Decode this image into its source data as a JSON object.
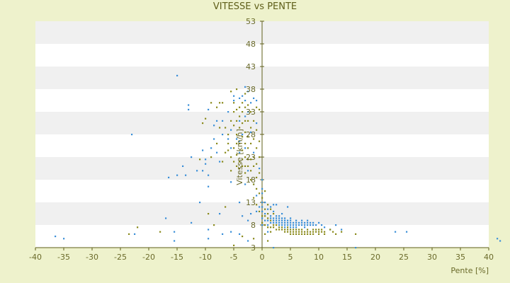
{
  "chart_data": {
    "type": "scatter",
    "title": "VITESSE vs PENTE",
    "xlabel": "Pente [%]",
    "ylabel": "Vitesse [km/h]",
    "xlim": [
      -40,
      40
    ],
    "ylim": [
      3,
      53
    ],
    "x_ticks": [
      -40,
      -35,
      -30,
      -25,
      -20,
      -15,
      -10,
      -5,
      0,
      5,
      10,
      15,
      20,
      25,
      30,
      35,
      40
    ],
    "y_ticks": [
      3,
      8,
      13,
      18,
      23,
      28,
      33,
      38,
      43,
      48,
      53
    ],
    "grid": "horizontal alternating bands",
    "colors": {
      "background": "#eef2cc",
      "plot_band_light": "#ffffff",
      "plot_band_dark": "#f0f0f0",
      "axis": "#5f5f1a",
      "series_a": "#3a8fd8",
      "series_b": "#8a8a1c"
    },
    "series": [
      {
        "color": "#3a8fd8",
        "points": [
          [
            -36.5,
            5.5
          ],
          [
            -35,
            5
          ],
          [
            -23,
            28
          ],
          [
            -22.5,
            6
          ],
          [
            -17,
            9.5
          ],
          [
            -16.5,
            18.5
          ],
          [
            -15.5,
            4.5
          ],
          [
            -15.5,
            6.5
          ],
          [
            -15,
            19
          ],
          [
            -15,
            41
          ],
          [
            -14,
            21
          ],
          [
            -13.5,
            19
          ],
          [
            -13,
            33.5
          ],
          [
            -13,
            34.5
          ],
          [
            -12.5,
            23
          ],
          [
            -12.5,
            8.5
          ],
          [
            -11.5,
            20
          ],
          [
            -11,
            13
          ],
          [
            -10.5,
            24.5
          ],
          [
            -10.5,
            20
          ],
          [
            -10,
            21.5
          ],
          [
            -10,
            22.5
          ],
          [
            -9.5,
            33.5
          ],
          [
            -9.5,
            19
          ],
          [
            -9.5,
            16.5
          ],
          [
            -9.5,
            7
          ],
          [
            -9.5,
            5
          ],
          [
            -9,
            25
          ],
          [
            -8.5,
            27
          ],
          [
            -8.5,
            30
          ],
          [
            -8,
            31
          ],
          [
            -8,
            24
          ],
          [
            -7.5,
            22
          ],
          [
            -7.5,
            10.5
          ],
          [
            -7,
            31
          ],
          [
            -7,
            28
          ],
          [
            -7,
            6
          ],
          [
            -6,
            27
          ],
          [
            -6,
            33
          ],
          [
            -5.5,
            25
          ],
          [
            -5.5,
            29
          ],
          [
            -5.5,
            17.5
          ],
          [
            -5.5,
            6.5
          ],
          [
            -5,
            35.5
          ],
          [
            -5,
            36.5
          ],
          [
            -4.5,
            27
          ],
          [
            -4,
            36
          ],
          [
            -4,
            31
          ],
          [
            -4,
            24
          ],
          [
            -4,
            26.5
          ],
          [
            -4,
            13
          ],
          [
            -4,
            6
          ],
          [
            -3.5,
            36.5
          ],
          [
            -3.5,
            28
          ],
          [
            -3.5,
            10
          ],
          [
            -3,
            35.5
          ],
          [
            -3,
            38.5
          ],
          [
            -3,
            32
          ],
          [
            -3,
            25
          ],
          [
            -3,
            17
          ],
          [
            -2.5,
            37.5
          ],
          [
            -2.5,
            33
          ],
          [
            -2.5,
            20
          ],
          [
            -2.5,
            9
          ],
          [
            -2.5,
            4.5
          ],
          [
            -2,
            35
          ],
          [
            -2,
            28.5
          ],
          [
            -2,
            10.5
          ],
          [
            -1.5,
            36
          ],
          [
            -1.5,
            24
          ],
          [
            -1.5,
            17
          ],
          [
            -1,
            30.5
          ],
          [
            -1,
            35.5
          ],
          [
            -1,
            11
          ],
          [
            -1,
            14.5
          ],
          [
            -0.5,
            20.5
          ],
          [
            -0.5,
            12
          ],
          [
            0,
            18
          ],
          [
            0,
            16
          ],
          [
            0,
            15
          ],
          [
            0,
            13
          ],
          [
            0,
            12
          ],
          [
            0,
            11
          ],
          [
            0,
            9.5
          ],
          [
            0,
            8
          ],
          [
            0.5,
            10.5
          ],
          [
            0.5,
            13
          ],
          [
            0.5,
            9
          ],
          [
            1,
            11.5
          ],
          [
            1,
            9
          ],
          [
            1,
            8
          ],
          [
            1,
            6.5
          ],
          [
            1.5,
            12
          ],
          [
            1.5,
            10
          ],
          [
            1.5,
            9.5
          ],
          [
            1.5,
            8.5
          ],
          [
            2,
            12.5
          ],
          [
            2,
            11
          ],
          [
            2,
            9.5
          ],
          [
            2,
            9
          ],
          [
            2,
            8.5
          ],
          [
            2,
            3
          ],
          [
            2.5,
            12.5
          ],
          [
            2.5,
            10
          ],
          [
            2.5,
            9.5
          ],
          [
            2.5,
            9
          ],
          [
            2.5,
            8.5
          ],
          [
            3,
            10
          ],
          [
            3,
            9.5
          ],
          [
            3,
            9
          ],
          [
            3,
            8.5
          ],
          [
            3,
            8
          ],
          [
            3.5,
            10.5
          ],
          [
            3.5,
            9.5
          ],
          [
            3.5,
            9
          ],
          [
            3.5,
            8.5
          ],
          [
            3.5,
            8
          ],
          [
            4,
            9.5
          ],
          [
            4,
            9
          ],
          [
            4,
            8.5
          ],
          [
            4,
            8
          ],
          [
            4,
            7.5
          ],
          [
            4.5,
            12
          ],
          [
            4.5,
            9
          ],
          [
            4.5,
            8.5
          ],
          [
            4.5,
            8
          ],
          [
            5,
            9.5
          ],
          [
            5,
            9
          ],
          [
            5,
            8.5
          ],
          [
            5,
            8
          ],
          [
            5,
            7.5
          ],
          [
            5.5,
            8.5
          ],
          [
            5.5,
            8
          ],
          [
            5.5,
            7.5
          ],
          [
            6,
            9
          ],
          [
            6,
            8.5
          ],
          [
            6,
            8
          ],
          [
            6,
            7.5
          ],
          [
            6.5,
            8.5
          ],
          [
            6.5,
            8
          ],
          [
            7,
            9
          ],
          [
            7,
            8.5
          ],
          [
            7,
            8
          ],
          [
            7.5,
            8.5
          ],
          [
            7.5,
            8
          ],
          [
            7.5,
            7.5
          ],
          [
            8,
            9
          ],
          [
            8,
            8.5
          ],
          [
            8,
            8
          ],
          [
            8.5,
            8.5
          ],
          [
            8.5,
            8
          ],
          [
            9,
            8.5
          ],
          [
            9,
            8
          ],
          [
            9.5,
            8
          ],
          [
            10,
            8.5
          ],
          [
            10.5,
            8
          ],
          [
            11,
            7.5
          ],
          [
            12,
            7
          ],
          [
            13,
            8
          ],
          [
            14,
            7
          ],
          [
            16.5,
            3
          ],
          [
            23.5,
            6.5
          ],
          [
            25.5,
            6.5
          ],
          [
            41.5,
            5
          ],
          [
            42,
            4.5
          ]
        ]
      },
      {
        "color": "#8a8a1c",
        "points": [
          [
            -23.5,
            6
          ],
          [
            -22,
            7.5
          ],
          [
            -18,
            6.5
          ],
          [
            -11,
            22.5
          ],
          [
            -10.5,
            30.5
          ],
          [
            -10,
            31.5
          ],
          [
            -9.5,
            10.5
          ],
          [
            -9,
            23
          ],
          [
            -9,
            35
          ],
          [
            -8.5,
            8
          ],
          [
            -8,
            34
          ],
          [
            -8,
            26
          ],
          [
            -7.5,
            29.5
          ],
          [
            -7.5,
            35
          ],
          [
            -7,
            35
          ],
          [
            -7,
            22
          ],
          [
            -6.5,
            29.5
          ],
          [
            -6.5,
            24
          ],
          [
            -6.5,
            12
          ],
          [
            -6,
            28
          ],
          [
            -6,
            26
          ],
          [
            -6,
            24.5
          ],
          [
            -5.5,
            37.5
          ],
          [
            -5.5,
            31
          ],
          [
            -5.5,
            23
          ],
          [
            -5.5,
            20
          ],
          [
            -5,
            35
          ],
          [
            -5,
            33
          ],
          [
            -5,
            30
          ],
          [
            -5,
            25
          ],
          [
            -5,
            22
          ],
          [
            -5,
            3.5
          ],
          [
            -4.5,
            38
          ],
          [
            -4.5,
            33.5
          ],
          [
            -4.5,
            31
          ],
          [
            -4.5,
            28
          ],
          [
            -4.5,
            26
          ],
          [
            -4.5,
            23.5
          ],
          [
            -4.5,
            21
          ],
          [
            -4,
            34
          ],
          [
            -4,
            32
          ],
          [
            -4,
            29.5
          ],
          [
            -4,
            26
          ],
          [
            -4,
            22
          ],
          [
            -4,
            20.5
          ],
          [
            -3.5,
            35
          ],
          [
            -3.5,
            33
          ],
          [
            -3.5,
            30.5
          ],
          [
            -3.5,
            27.5
          ],
          [
            -3.5,
            24.5
          ],
          [
            -3.5,
            22.5
          ],
          [
            -3.5,
            21
          ],
          [
            -3.5,
            5.5
          ],
          [
            -3,
            37
          ],
          [
            -3,
            34
          ],
          [
            -3,
            31
          ],
          [
            -3,
            28.5
          ],
          [
            -3,
            26
          ],
          [
            -3,
            23
          ],
          [
            -3,
            21
          ],
          [
            -3,
            19.5
          ],
          [
            -2.5,
            34.5
          ],
          [
            -2.5,
            31
          ],
          [
            -2.5,
            27.5
          ],
          [
            -2.5,
            25
          ],
          [
            -2.5,
            22.5
          ],
          [
            -2.5,
            21
          ],
          [
            -2,
            33
          ],
          [
            -2,
            29.5
          ],
          [
            -2,
            26
          ],
          [
            -2,
            22.5
          ],
          [
            -2,
            20
          ],
          [
            -2,
            18
          ],
          [
            -1.5,
            31
          ],
          [
            -1.5,
            27
          ],
          [
            -1.5,
            23
          ],
          [
            -1.5,
            21
          ],
          [
            -1.5,
            17
          ],
          [
            -1.5,
            14
          ],
          [
            -1.5,
            5
          ],
          [
            -1,
            34
          ],
          [
            -1,
            29
          ],
          [
            -1,
            25
          ],
          [
            -1,
            21.5
          ],
          [
            -1,
            18.5
          ],
          [
            -1,
            16
          ],
          [
            -1,
            12.5
          ],
          [
            -0.5,
            33.5
          ],
          [
            -0.5,
            26.5
          ],
          [
            -0.5,
            23
          ],
          [
            -0.5,
            19.5
          ],
          [
            -0.5,
            15
          ],
          [
            -0.5,
            11
          ],
          [
            0,
            14
          ],
          [
            0,
            10
          ],
          [
            0,
            8.5
          ],
          [
            0.5,
            15.5
          ],
          [
            0.5,
            11.5
          ],
          [
            0.5,
            10
          ],
          [
            0.5,
            8
          ],
          [
            0.5,
            6
          ],
          [
            1,
            12.5
          ],
          [
            1,
            10.5
          ],
          [
            1,
            9.5
          ],
          [
            1,
            7.5
          ],
          [
            1,
            4.5
          ],
          [
            1.5,
            11.5
          ],
          [
            1.5,
            9
          ],
          [
            1.5,
            7.5
          ],
          [
            1.5,
            6.5
          ],
          [
            2,
            10.5
          ],
          [
            2,
            8
          ],
          [
            2,
            7.5
          ],
          [
            2.5,
            8
          ],
          [
            2.5,
            7
          ],
          [
            3,
            7.5
          ],
          [
            3,
            7
          ],
          [
            3.5,
            7.5
          ],
          [
            3.5,
            7
          ],
          [
            4,
            7
          ],
          [
            4,
            6.5
          ],
          [
            4.5,
            7.5
          ],
          [
            4.5,
            7
          ],
          [
            4.5,
            6.5
          ],
          [
            5,
            7
          ],
          [
            5,
            6.5
          ],
          [
            5,
            6
          ],
          [
            5.5,
            7
          ],
          [
            5.5,
            6.5
          ],
          [
            5.5,
            6
          ],
          [
            6,
            7
          ],
          [
            6,
            6.5
          ],
          [
            6,
            6
          ],
          [
            6.5,
            7
          ],
          [
            6.5,
            6.5
          ],
          [
            6.5,
            6
          ],
          [
            7,
            7
          ],
          [
            7,
            6.5
          ],
          [
            7,
            6
          ],
          [
            7.5,
            6.5
          ],
          [
            7.5,
            6
          ],
          [
            8,
            7
          ],
          [
            8,
            6.5
          ],
          [
            8,
            6
          ],
          [
            8.5,
            6.5
          ],
          [
            8.5,
            6
          ],
          [
            9,
            7
          ],
          [
            9,
            6.5
          ],
          [
            9,
            6
          ],
          [
            9.5,
            7
          ],
          [
            9.5,
            6.5
          ],
          [
            10,
            7
          ],
          [
            10,
            6.5
          ],
          [
            10,
            6
          ],
          [
            10.5,
            7
          ],
          [
            10.5,
            6.5
          ],
          [
            11,
            6.5
          ],
          [
            11,
            6
          ],
          [
            12,
            7
          ],
          [
            12.5,
            6.5
          ],
          [
            13,
            6
          ],
          [
            14,
            6.5
          ],
          [
            16.5,
            6
          ]
        ]
      }
    ]
  }
}
